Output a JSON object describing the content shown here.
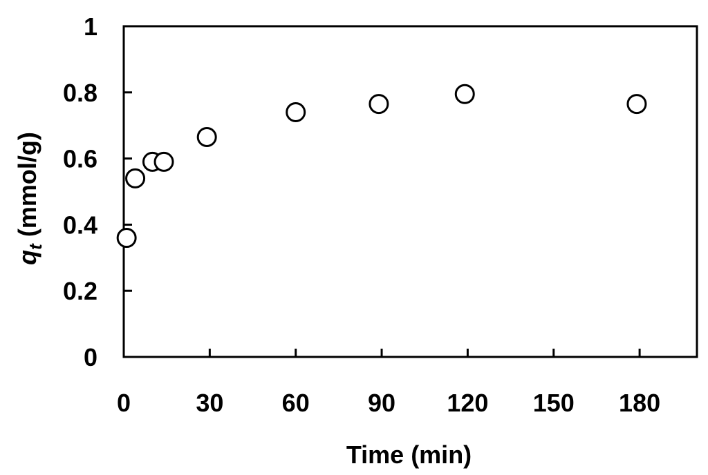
{
  "chart_data": {
    "type": "scatter",
    "xlabel": "Time (min)",
    "ylabel": {
      "symbol": "q",
      "subscript": "t",
      "unit": " (mmol/g)"
    },
    "xlim": [
      0,
      200
    ],
    "ylim": [
      0,
      1
    ],
    "x_ticks": [
      0,
      30,
      60,
      90,
      120,
      150,
      180
    ],
    "y_ticks": [
      0,
      0.2,
      0.4,
      0.6,
      0.8,
      1
    ],
    "y_tick_labels": [
      "0",
      "0.2",
      "0.4",
      "0.6",
      "0.8",
      "1"
    ],
    "grid": false,
    "marker": "open-circle",
    "series": [
      {
        "x": [
          1,
          4,
          10,
          14,
          29,
          60,
          89,
          119,
          179
        ],
        "y": [
          0.36,
          0.54,
          0.59,
          0.59,
          0.665,
          0.74,
          0.765,
          0.795,
          0.765
        ]
      }
    ]
  }
}
